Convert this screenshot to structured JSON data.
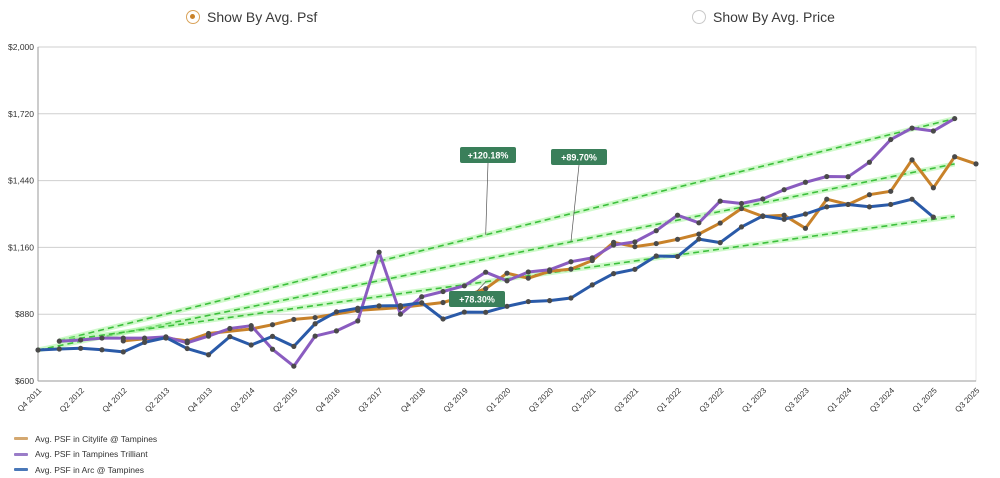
{
  "toggle": {
    "options": [
      {
        "label": "Show By Avg. Psf",
        "checked": true
      },
      {
        "label": "Show By Avg. Price",
        "checked": false
      }
    ]
  },
  "chart_data": {
    "type": "line",
    "title": "",
    "xlabel": "",
    "ylabel": "",
    "ylim": [
      600,
      2000
    ],
    "yticks": [
      "$600",
      "$880",
      "$1,160",
      "$1,440",
      "$1,720",
      "$2,000"
    ],
    "ytick_values": [
      600,
      880,
      1160,
      1440,
      1720,
      2000
    ],
    "xticks": [
      "Q4 2011",
      "Q2 2012",
      "Q4 2012",
      "Q2 2013",
      "Q4 2013",
      "Q3 2014",
      "Q2 2015",
      "Q4 2016",
      "Q3 2017",
      "Q4 2018",
      "Q3 2019",
      "Q1 2020",
      "Q3 2020",
      "Q1 2021",
      "Q3 2021",
      "Q1 2022",
      "Q3 2022",
      "Q1 2023",
      "Q3 2023",
      "Q1 2024",
      "Q3 2024",
      "Q1 2025",
      "Q3 2025"
    ],
    "grid": true,
    "legend_position": "bottom-left",
    "series": [
      {
        "name": "Avg. PSF in Citylife @  Tampines",
        "color": "#c8822a",
        "points": [
          [
            4,
            768
          ],
          [
            5,
            777
          ],
          [
            6,
            780
          ],
          [
            7,
            768
          ],
          [
            8,
            799
          ],
          [
            10,
            818
          ],
          [
            11,
            836
          ],
          [
            12,
            858
          ],
          [
            13,
            866
          ],
          [
            15,
            896
          ],
          [
            17,
            908
          ],
          [
            19,
            929
          ],
          [
            20,
            955
          ],
          [
            21,
            987
          ],
          [
            22,
            1052
          ],
          [
            23,
            1031
          ],
          [
            24,
            1060
          ],
          [
            25,
            1069
          ],
          [
            26,
            1105
          ],
          [
            27,
            1181
          ],
          [
            28,
            1163
          ],
          [
            29,
            1176
          ],
          [
            30,
            1194
          ],
          [
            31,
            1216
          ],
          [
            32,
            1262
          ],
          [
            33,
            1323
          ],
          [
            34,
            1290
          ],
          [
            35,
            1295
          ],
          [
            36,
            1240
          ],
          [
            37,
            1362
          ],
          [
            38,
            1340
          ],
          [
            39,
            1381
          ],
          [
            40,
            1395
          ],
          [
            41,
            1527
          ],
          [
            42,
            1410
          ],
          [
            43,
            1540
          ],
          [
            44,
            1510
          ]
        ]
      },
      {
        "name": "Avg. PSF in Tampines Trilliant",
        "color": "#8a5cc0",
        "points": [
          [
            1,
            767
          ],
          [
            2,
            772
          ],
          [
            3,
            780
          ],
          [
            4,
            780
          ],
          [
            5,
            780
          ],
          [
            6,
            785
          ],
          [
            7,
            760
          ],
          [
            8,
            788
          ],
          [
            9,
            820
          ],
          [
            10,
            832
          ],
          [
            11,
            733
          ],
          [
            12,
            662
          ],
          [
            13,
            788
          ],
          [
            14,
            810
          ],
          [
            15,
            852
          ],
          [
            16,
            1140
          ],
          [
            17,
            880
          ],
          [
            18,
            953
          ],
          [
            19,
            975
          ],
          [
            20,
            999
          ],
          [
            21,
            1056
          ],
          [
            22,
            1020
          ],
          [
            23,
            1057
          ],
          [
            24,
            1066
          ],
          [
            25,
            1100
          ],
          [
            26,
            1116
          ],
          [
            27,
            1170
          ],
          [
            28,
            1183
          ],
          [
            29,
            1230
          ],
          [
            30,
            1295
          ],
          [
            31,
            1263
          ],
          [
            32,
            1354
          ],
          [
            33,
            1344
          ],
          [
            34,
            1363
          ],
          [
            35,
            1402
          ],
          [
            36,
            1433
          ],
          [
            37,
            1457
          ],
          [
            38,
            1456
          ],
          [
            39,
            1517
          ],
          [
            40,
            1612
          ],
          [
            41,
            1660
          ],
          [
            42,
            1648
          ],
          [
            43,
            1700
          ]
        ]
      },
      {
        "name": "Avg. PSF in Arc @ Tampines",
        "color": "#2a5aa8",
        "points": [
          [
            0,
            730
          ],
          [
            1,
            734
          ],
          [
            2,
            737
          ],
          [
            3,
            731
          ],
          [
            4,
            722
          ],
          [
            5,
            762
          ],
          [
            6,
            782
          ],
          [
            7,
            736
          ],
          [
            8,
            710
          ],
          [
            9,
            786
          ],
          [
            10,
            751
          ],
          [
            11,
            787
          ],
          [
            12,
            745
          ],
          [
            13,
            840
          ],
          [
            14,
            890
          ],
          [
            15,
            905
          ],
          [
            16,
            915
          ],
          [
            17,
            916
          ],
          [
            18,
            928
          ],
          [
            19,
            860
          ],
          [
            20,
            889
          ],
          [
            21,
            888
          ],
          [
            22,
            913
          ],
          [
            23,
            933
          ],
          [
            24,
            937
          ],
          [
            25,
            948
          ],
          [
            26,
            1003
          ],
          [
            27,
            1050
          ],
          [
            28,
            1068
          ],
          [
            29,
            1124
          ],
          [
            30,
            1122
          ],
          [
            31,
            1195
          ],
          [
            32,
            1180
          ],
          [
            33,
            1246
          ],
          [
            34,
            1292
          ],
          [
            35,
            1278
          ],
          [
            36,
            1300
          ],
          [
            37,
            1330
          ],
          [
            38,
            1340
          ],
          [
            39,
            1330
          ],
          [
            40,
            1340
          ],
          [
            41,
            1362
          ],
          [
            42,
            1287
          ]
        ]
      }
    ],
    "trendlines": [
      {
        "label": "+120.18%",
        "from": [
          1,
          770
        ],
        "to": [
          43,
          1700
        ],
        "color": "#3bdc3b"
      },
      {
        "label": "+89.70%",
        "from": [
          0,
          730
        ],
        "to": [
          43,
          1510
        ],
        "color": "#3bdc3b"
      },
      {
        "label": "+78.30%",
        "from": [
          1,
          767
        ],
        "to": [
          43,
          1290
        ],
        "color": "#3bdc3b"
      }
    ],
    "annotations": [
      {
        "text": "+120.18%",
        "box": [
          460,
          147
        ],
        "anchor_x": 21
      },
      {
        "text": "+89.70%",
        "box": [
          551,
          149
        ],
        "anchor_x": 25
      },
      {
        "text": "+78.30%",
        "box": [
          449,
          291
        ],
        "anchor_x": 21
      }
    ]
  },
  "legend": {
    "items": [
      {
        "label": "Avg. PSF in Citylife @  Tampines",
        "color": "#d4a870"
      },
      {
        "label": "Avg. PSF in Tampines Trilliant",
        "color": "#9a7cc8"
      },
      {
        "label": "Avg. PSF in Arc @ Tampines",
        "color": "#4a78b8"
      }
    ]
  }
}
